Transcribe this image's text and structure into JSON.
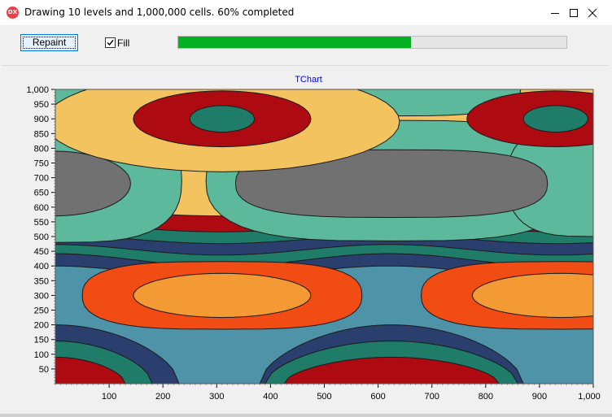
{
  "window": {
    "title": "Drawing 10 levels and 1,000,000 cells. 60% completed",
    "icon_text": "DX",
    "controls": [
      "minimize-icon",
      "maximize-icon",
      "close-icon"
    ]
  },
  "toolbar": {
    "repaint_label": "Repaint",
    "fill_label": "Fill",
    "fill_checked": true,
    "progress": 0.6,
    "progress_color": "#06b025"
  },
  "chart_data": {
    "type": "contour",
    "title": "TChart",
    "xlim": [
      0,
      1000
    ],
    "ylim": [
      0,
      1000
    ],
    "x_ticks": [
      100,
      200,
      300,
      400,
      500,
      600,
      700,
      800,
      900,
      "1,000"
    ],
    "y_ticks": [
      "1,000",
      950,
      900,
      850,
      800,
      750,
      700,
      650,
      600,
      550,
      500,
      450,
      400,
      350,
      300,
      250,
      200,
      150,
      100,
      50
    ],
    "levels": 10,
    "fill": true,
    "level_colors": [
      "#ae0a12",
      "#1e7c68",
      "#2b3f6e",
      "#4f93a8",
      "#f04c14",
      "#f39a35",
      "#f3c35f",
      "#5db99c",
      "#717171"
    ]
  }
}
